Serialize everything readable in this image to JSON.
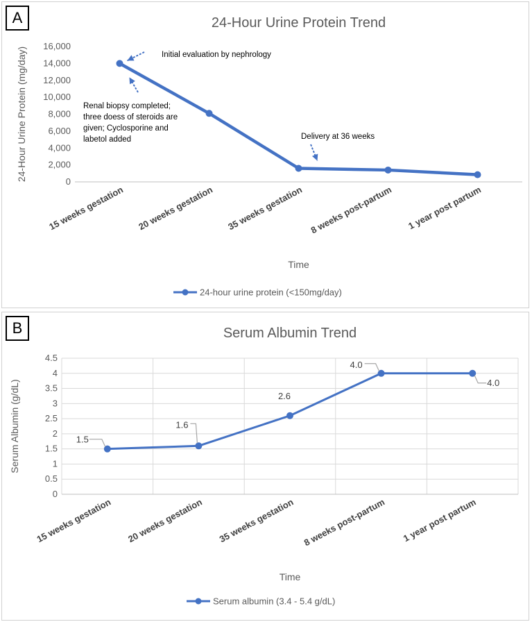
{
  "chart_data": [
    {
      "type": "line",
      "panel_label": "A",
      "title": "24-Hour Urine Protein Trend",
      "xlabel": "Time",
      "ylabel": "24-Hour Urine Protein (mg/day)",
      "categories": [
        "15 weeks gestation",
        "20 weeks gestation",
        "35 weeks gestation",
        "8 weeks post-partum",
        "1 year post partum"
      ],
      "yticks": [
        "0",
        "2,000",
        "4,000",
        "6,000",
        "8,000",
        "10,000",
        "12,000",
        "14,000",
        "16,000"
      ],
      "ylim": [
        0,
        16000
      ],
      "series": [
        {
          "name": "24-hour urine protein (<150mg/day)",
          "values": [
            14000,
            8100,
            1600,
            1400,
            850
          ],
          "color": "#4472C4"
        }
      ],
      "annotations": [
        {
          "lines": [
            "Initial evaluation by nephrology"
          ],
          "point_index": 0
        },
        {
          "lines": [
            "Renal biopsy completed;",
            "three doess of steroids are",
            "given; Cyclosporine and",
            "labetol added"
          ],
          "point_index": 0
        },
        {
          "lines": [
            "Delivery at 36 weeks"
          ],
          "point_index": 2
        }
      ],
      "grid": false,
      "legend": "bottom"
    },
    {
      "type": "line",
      "panel_label": "B",
      "title": "Serum Albumin Trend",
      "xlabel": "Time",
      "ylabel": "Serum Albumin (g/dL)",
      "categories": [
        "15 weeks gestation",
        "20 weeks gestation",
        "35 weeks gestation",
        "8 weeks post-partum",
        "1 year post partum"
      ],
      "yticks": [
        "0",
        "0.5",
        "1",
        "1.5",
        "2",
        "2.5",
        "3",
        "3.5",
        "4",
        "4.5"
      ],
      "ylim": [
        0,
        4.5
      ],
      "series": [
        {
          "name": "Serum albumin (3.4 - 5.4 g/dL)",
          "values": [
            1.5,
            1.6,
            2.6,
            4.0,
            4.0
          ],
          "color": "#4472C4"
        }
      ],
      "data_labels": [
        "1.5",
        "1.6",
        "2.6",
        "4.0",
        "4.0"
      ],
      "grid": true,
      "legend": "bottom"
    }
  ]
}
